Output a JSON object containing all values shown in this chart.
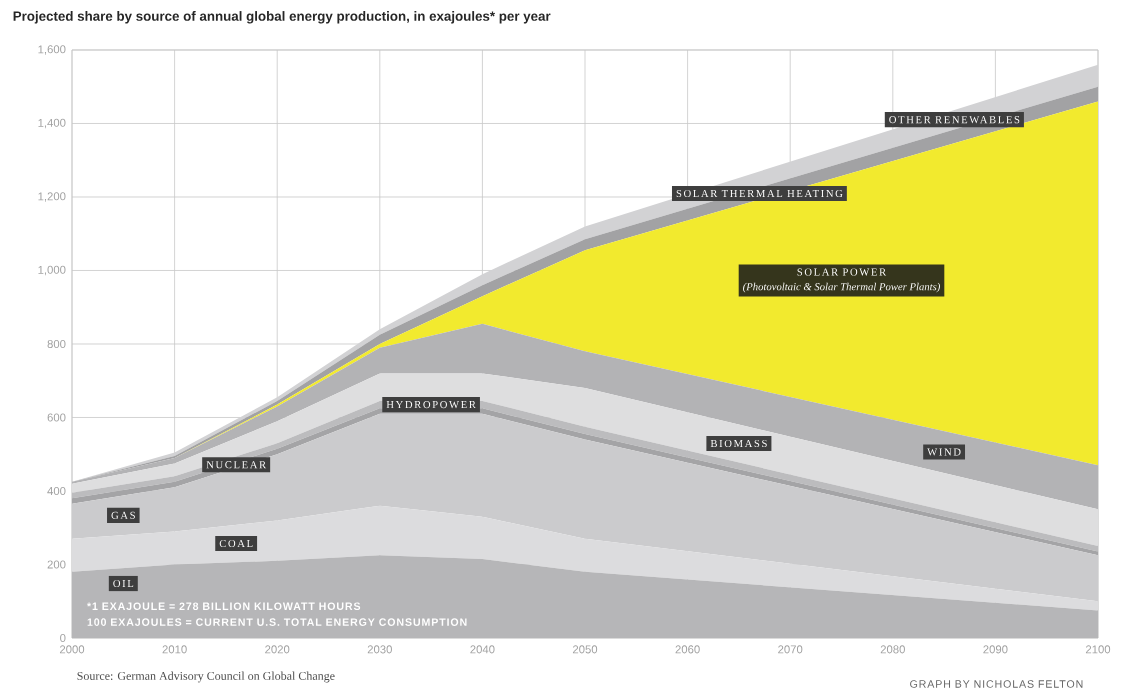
{
  "chart_data": {
    "type": "area",
    "stacked": true,
    "title": "Projected share by source of annual global energy production, in exajoules* per year",
    "x": [
      2000,
      2010,
      2020,
      2030,
      2040,
      2050,
      2100
    ],
    "series": [
      {
        "name": "OIL",
        "color": "#b6b6b8",
        "values": [
          180,
          200,
          210,
          225,
          215,
          180,
          75
        ]
      },
      {
        "name": "COAL",
        "color": "#dcdcde",
        "values": [
          90,
          90,
          110,
          135,
          115,
          90,
          25
        ]
      },
      {
        "name": "GAS",
        "color": "#cbcbcd",
        "values": [
          95,
          120,
          180,
          250,
          280,
          270,
          125
        ]
      },
      {
        "name": "NUCLEAR",
        "color": "#a4a4a6",
        "values": [
          15,
          15,
          15,
          15,
          15,
          15,
          10
        ]
      },
      {
        "name": "HYDROPOWER",
        "color": "#bcbcbe",
        "values": [
          15,
          15,
          15,
          20,
          20,
          20,
          15
        ]
      },
      {
        "name": "BIOMASS",
        "color": "#dededf",
        "values": [
          25,
          35,
          60,
          75,
          75,
          105,
          100
        ]
      },
      {
        "name": "WIND",
        "color": "#b3b3b5",
        "values": [
          5,
          15,
          40,
          70,
          135,
          100,
          120
        ]
      },
      {
        "name": "SOLAR POWER",
        "color": "#f2ea2e",
        "values": [
          0,
          0,
          5,
          10,
          75,
          275,
          990
        ]
      },
      {
        "name": "SOLAR THERMAL HEATING",
        "color": "#a2a2a4",
        "values": [
          0,
          5,
          10,
          25,
          30,
          30,
          40
        ]
      },
      {
        "name": "OTHER RENEWABLES",
        "color": "#d2d2d4",
        "values": [
          0,
          10,
          10,
          15,
          30,
          35,
          60
        ]
      }
    ],
    "xlim": [
      2000,
      2100
    ],
    "ylim": [
      0,
      1600
    ],
    "xticks": [
      2000,
      2010,
      2020,
      2030,
      2040,
      2050,
      2060,
      2070,
      2080,
      2090,
      2100
    ],
    "yticks": [
      0,
      200,
      400,
      600,
      800,
      {
        "value": 1000,
        "label": "1,000"
      },
      {
        "value": 1200,
        "label": "1,200"
      },
      {
        "value": 1400,
        "label": "1,400"
      },
      {
        "value": 1600,
        "label": "1,600"
      }
    ],
    "grid": true,
    "annotations": [
      "(Photovoltaic & Solar Thermal Power Plants)",
      "*1 EXAJOULE = 278 BILLION KILOWATT HOURS",
      "100 EXAJOULES = CURRENT U.S. TOTAL ENERGY CONSUMPTION",
      "Source: German Advisory Council on Global Change",
      "GRAPH BY NICHOLAS FELTON"
    ]
  }
}
